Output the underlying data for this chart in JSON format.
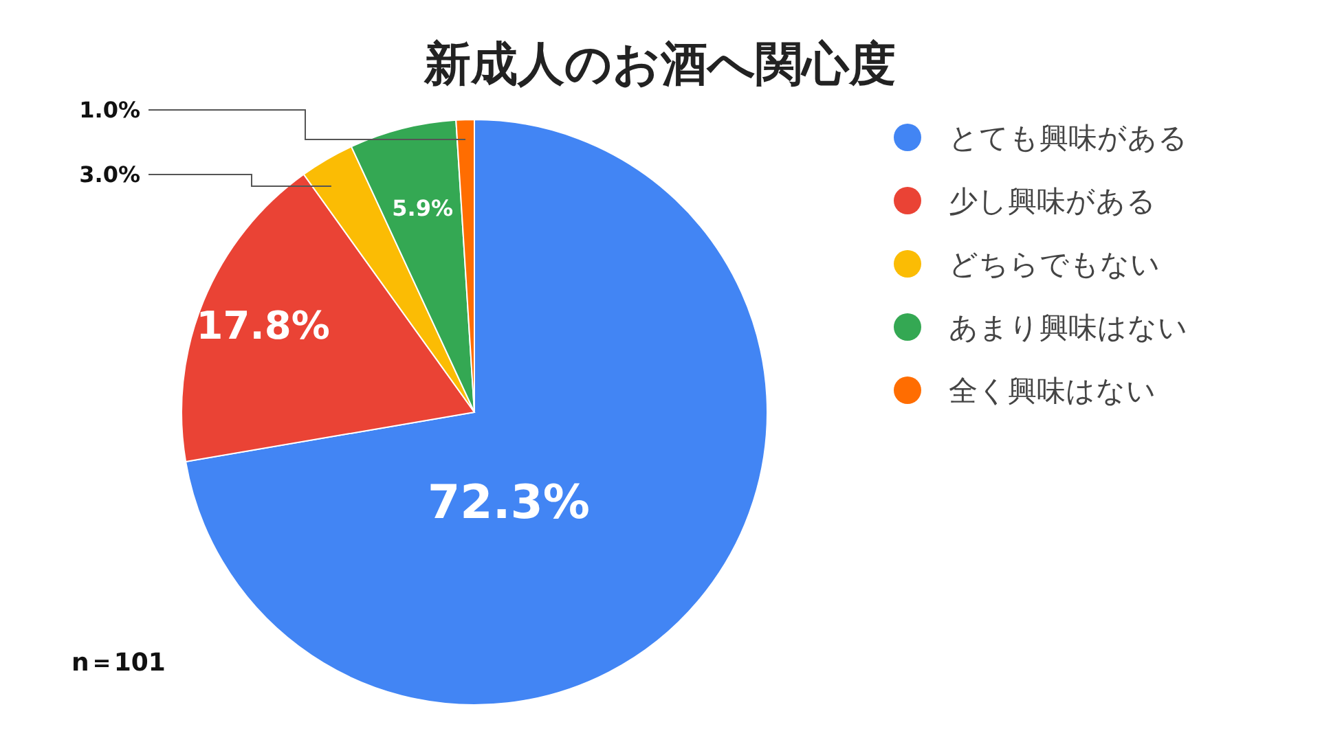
{
  "chart_data": {
    "type": "pie",
    "title": "新成人のお酒へ関心度",
    "categories": [
      "とても興味がある",
      "少し興味がある",
      "どちらでもない",
      "あまり興味はない",
      "全く興味はない"
    ],
    "values": [
      72.3,
      17.8,
      3.0,
      5.9,
      1.0
    ],
    "value_labels": [
      "72.3%",
      "17.8%",
      "3.0%",
      "5.9%",
      "1.0%"
    ],
    "colors": [
      "#4285f4",
      "#ea4335",
      "#fbbc04",
      "#34a853",
      "#ff6d01"
    ],
    "legend": "right",
    "annotations": [
      "n＝101"
    ]
  }
}
